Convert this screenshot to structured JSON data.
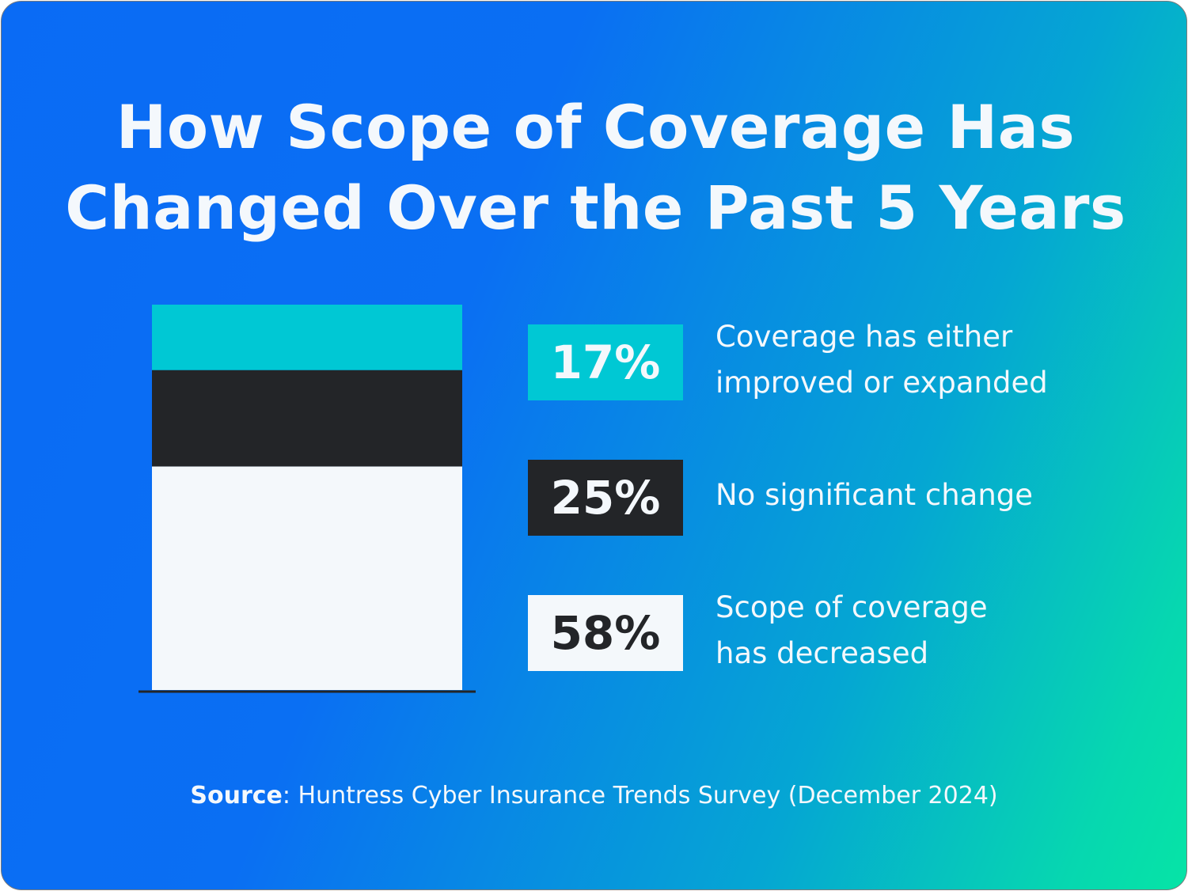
{
  "title": {
    "line1": "How Scope of Coverage Has",
    "line2": "Changed Over the Past 5 Years"
  },
  "chart_data": {
    "type": "bar",
    "stacked": true,
    "title": "How Scope of Coverage Has Changed Over the Past 5 Years",
    "categories": [
      "Coverage has either improved or expanded",
      "No significant change",
      "Scope of coverage has decreased"
    ],
    "values": [
      17,
      25,
      58
    ],
    "unit": "%",
    "colors": [
      "#00c8d4",
      "#232528",
      "#f4f8fb"
    ],
    "labels": [
      {
        "value": "17%",
        "line1": "Coverage has either",
        "line2": "improved or expanded",
        "text_color": "#f4f8fc"
      },
      {
        "value": "25%",
        "line1": "No significant change",
        "line2": "",
        "text_color": "#f4f8fc"
      },
      {
        "value": "58%",
        "line1": "Scope of coverage",
        "line2": "has decreased",
        "text_color": "#232528"
      }
    ]
  },
  "source": {
    "label": "Source",
    "text": ": Huntress Cyber Insurance Trends Survey (December 2024)"
  },
  "colors": {
    "gradient_start": "#0a6bf5",
    "gradient_end": "#06e4a6",
    "baseline": "#232528"
  }
}
